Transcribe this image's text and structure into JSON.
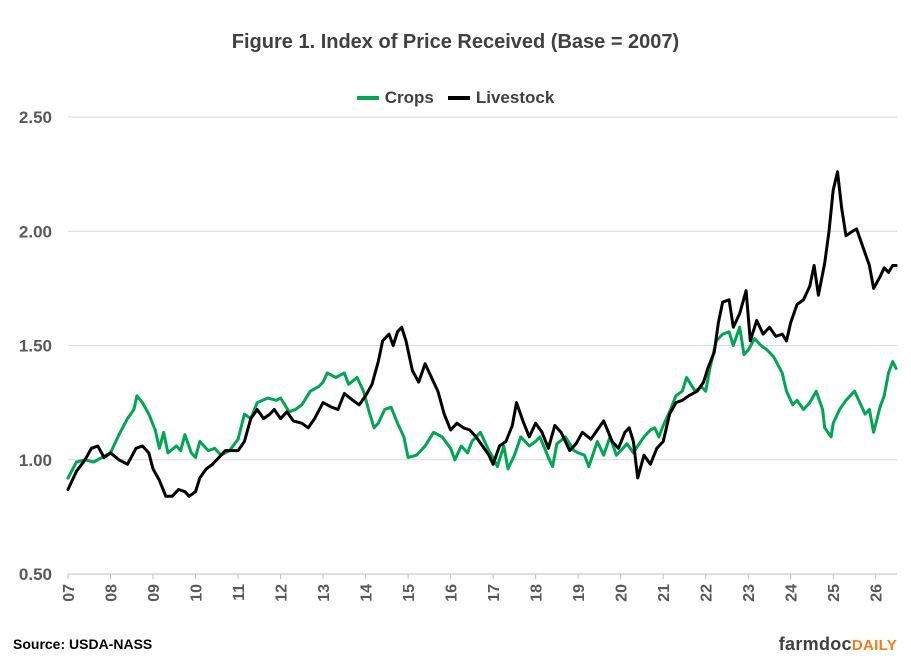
{
  "chart_data": {
    "type": "line",
    "title": "Figure 1. Index of Price Received (Base = 2007)",
    "ylim": [
      0.5,
      2.5
    ],
    "yticks": [
      "0.50",
      "1.00",
      "1.50",
      "2.00",
      "2.50"
    ],
    "xlim": [
      2007.0,
      2026.5
    ],
    "xticks": [
      "07",
      "08",
      "09",
      "10",
      "11",
      "12",
      "13",
      "14",
      "15",
      "16",
      "17",
      "18",
      "19",
      "20",
      "21",
      "22",
      "23",
      "24",
      "25",
      "26"
    ],
    "grid": "horizontal",
    "legend_position": "top-center",
    "series": [
      {
        "name": "Crops",
        "color": "#00a651",
        "points": [
          [
            2007.0,
            0.92
          ],
          [
            2007.2,
            0.99
          ],
          [
            2007.4,
            1.0
          ],
          [
            2007.6,
            0.99
          ],
          [
            2007.8,
            1.01
          ],
          [
            2008.0,
            1.03
          ],
          [
            2008.2,
            1.11
          ],
          [
            2008.4,
            1.18
          ],
          [
            2008.55,
            1.22
          ],
          [
            2008.62,
            1.28
          ],
          [
            2008.75,
            1.25
          ],
          [
            2008.9,
            1.2
          ],
          [
            2009.05,
            1.13
          ],
          [
            2009.15,
            1.05
          ],
          [
            2009.25,
            1.12
          ],
          [
            2009.35,
            1.03
          ],
          [
            2009.55,
            1.06
          ],
          [
            2009.65,
            1.04
          ],
          [
            2009.75,
            1.11
          ],
          [
            2009.9,
            1.03
          ],
          [
            2010.0,
            1.01
          ],
          [
            2010.1,
            1.08
          ],
          [
            2010.3,
            1.04
          ],
          [
            2010.45,
            1.05
          ],
          [
            2010.6,
            1.02
          ],
          [
            2010.8,
            1.04
          ],
          [
            2011.0,
            1.09
          ],
          [
            2011.15,
            1.2
          ],
          [
            2011.3,
            1.18
          ],
          [
            2011.45,
            1.25
          ],
          [
            2011.7,
            1.27
          ],
          [
            2011.9,
            1.26
          ],
          [
            2012.0,
            1.27
          ],
          [
            2012.2,
            1.21
          ],
          [
            2012.35,
            1.22
          ],
          [
            2012.5,
            1.24
          ],
          [
            2012.7,
            1.3
          ],
          [
            2012.9,
            1.32
          ],
          [
            2013.0,
            1.34
          ],
          [
            2013.1,
            1.38
          ],
          [
            2013.3,
            1.36
          ],
          [
            2013.5,
            1.38
          ],
          [
            2013.6,
            1.33
          ],
          [
            2013.8,
            1.36
          ],
          [
            2013.95,
            1.3
          ],
          [
            2014.1,
            1.2
          ],
          [
            2014.2,
            1.14
          ],
          [
            2014.3,
            1.16
          ],
          [
            2014.45,
            1.22
          ],
          [
            2014.6,
            1.23
          ],
          [
            2014.75,
            1.16
          ],
          [
            2014.9,
            1.1
          ],
          [
            2015.0,
            1.01
          ],
          [
            2015.2,
            1.02
          ],
          [
            2015.4,
            1.06
          ],
          [
            2015.6,
            1.12
          ],
          [
            2015.8,
            1.1
          ],
          [
            2016.0,
            1.05
          ],
          [
            2016.1,
            1.0
          ],
          [
            2016.25,
            1.06
          ],
          [
            2016.4,
            1.03
          ],
          [
            2016.5,
            1.08
          ],
          [
            2016.7,
            1.12
          ],
          [
            2016.9,
            1.04
          ],
          [
            2017.0,
            1.01
          ],
          [
            2017.1,
            0.97
          ],
          [
            2017.25,
            1.06
          ],
          [
            2017.35,
            0.96
          ],
          [
            2017.5,
            1.02
          ],
          [
            2017.65,
            1.1
          ],
          [
            2017.85,
            1.06
          ],
          [
            2018.0,
            1.08
          ],
          [
            2018.1,
            1.1
          ],
          [
            2018.3,
            1.01
          ],
          [
            2018.4,
            0.97
          ],
          [
            2018.5,
            1.07
          ],
          [
            2018.7,
            1.1
          ],
          [
            2018.9,
            1.04
          ],
          [
            2019.0,
            1.03
          ],
          [
            2019.15,
            1.02
          ],
          [
            2019.25,
            0.97
          ],
          [
            2019.45,
            1.08
          ],
          [
            2019.6,
            1.02
          ],
          [
            2019.75,
            1.1
          ],
          [
            2019.9,
            1.02
          ],
          [
            2020.0,
            1.04
          ],
          [
            2020.15,
            1.07
          ],
          [
            2020.3,
            1.03
          ],
          [
            2020.4,
            1.06
          ],
          [
            2020.55,
            1.1
          ],
          [
            2020.7,
            1.13
          ],
          [
            2020.8,
            1.14
          ],
          [
            2020.9,
            1.1
          ],
          [
            2021.0,
            1.15
          ],
          [
            2021.15,
            1.21
          ],
          [
            2021.3,
            1.28
          ],
          [
            2021.45,
            1.3
          ],
          [
            2021.55,
            1.36
          ],
          [
            2021.75,
            1.3
          ],
          [
            2021.9,
            1.32
          ],
          [
            2022.0,
            1.3
          ],
          [
            2022.1,
            1.4
          ],
          [
            2022.25,
            1.52
          ],
          [
            2022.4,
            1.55
          ],
          [
            2022.55,
            1.56
          ],
          [
            2022.65,
            1.5
          ],
          [
            2022.8,
            1.58
          ],
          [
            2022.9,
            1.46
          ],
          [
            2023.0,
            1.48
          ],
          [
            2023.15,
            1.53
          ],
          [
            2023.3,
            1.5
          ],
          [
            2023.45,
            1.48
          ],
          [
            2023.6,
            1.45
          ],
          [
            2023.8,
            1.38
          ],
          [
            2023.9,
            1.3
          ],
          [
            2024.05,
            1.24
          ],
          [
            2024.15,
            1.26
          ],
          [
            2024.3,
            1.22
          ],
          [
            2024.45,
            1.25
          ],
          [
            2024.6,
            1.3
          ],
          [
            2024.75,
            1.22
          ],
          [
            2024.8,
            1.14
          ],
          [
            2024.95,
            1.1
          ],
          [
            2025.0,
            1.16
          ],
          [
            2025.15,
            1.22
          ],
          [
            2025.3,
            1.26
          ],
          [
            2025.5,
            1.3
          ],
          [
            2025.65,
            1.24
          ],
          [
            2025.75,
            1.2
          ],
          [
            2025.85,
            1.22
          ],
          [
            2025.95,
            1.12
          ],
          [
            2026.1,
            1.23
          ],
          [
            2026.2,
            1.28
          ],
          [
            2026.3,
            1.38
          ],
          [
            2026.4,
            1.43
          ],
          [
            2026.48,
            1.4
          ]
        ]
      },
      {
        "name": "Livestock",
        "color": "#000000",
        "points": [
          [
            2007.0,
            0.87
          ],
          [
            2007.2,
            0.95
          ],
          [
            2007.4,
            1.0
          ],
          [
            2007.55,
            1.05
          ],
          [
            2007.7,
            1.06
          ],
          [
            2007.85,
            1.01
          ],
          [
            2008.0,
            1.03
          ],
          [
            2008.2,
            1.0
          ],
          [
            2008.4,
            0.98
          ],
          [
            2008.6,
            1.05
          ],
          [
            2008.75,
            1.06
          ],
          [
            2008.9,
            1.03
          ],
          [
            2009.0,
            0.96
          ],
          [
            2009.15,
            0.91
          ],
          [
            2009.3,
            0.84
          ],
          [
            2009.45,
            0.84
          ],
          [
            2009.6,
            0.87
          ],
          [
            2009.75,
            0.86
          ],
          [
            2009.85,
            0.84
          ],
          [
            2010.0,
            0.86
          ],
          [
            2010.1,
            0.92
          ],
          [
            2010.25,
            0.96
          ],
          [
            2010.4,
            0.98
          ],
          [
            2010.55,
            1.01
          ],
          [
            2010.7,
            1.04
          ],
          [
            2010.85,
            1.04
          ],
          [
            2011.0,
            1.04
          ],
          [
            2011.15,
            1.08
          ],
          [
            2011.3,
            1.18
          ],
          [
            2011.45,
            1.22
          ],
          [
            2011.6,
            1.18
          ],
          [
            2011.75,
            1.2
          ],
          [
            2011.85,
            1.22
          ],
          [
            2012.0,
            1.18
          ],
          [
            2012.15,
            1.21
          ],
          [
            2012.3,
            1.17
          ],
          [
            2012.5,
            1.16
          ],
          [
            2012.65,
            1.14
          ],
          [
            2012.8,
            1.18
          ],
          [
            2013.0,
            1.25
          ],
          [
            2013.2,
            1.23
          ],
          [
            2013.35,
            1.22
          ],
          [
            2013.5,
            1.29
          ],
          [
            2013.7,
            1.26
          ],
          [
            2013.85,
            1.24
          ],
          [
            2014.0,
            1.28
          ],
          [
            2014.15,
            1.33
          ],
          [
            2014.3,
            1.43
          ],
          [
            2014.4,
            1.52
          ],
          [
            2014.55,
            1.55
          ],
          [
            2014.65,
            1.5
          ],
          [
            2014.75,
            1.56
          ],
          [
            2014.85,
            1.58
          ],
          [
            2014.95,
            1.52
          ],
          [
            2015.1,
            1.39
          ],
          [
            2015.25,
            1.34
          ],
          [
            2015.4,
            1.42
          ],
          [
            2015.55,
            1.36
          ],
          [
            2015.7,
            1.3
          ],
          [
            2015.85,
            1.2
          ],
          [
            2016.0,
            1.13
          ],
          [
            2016.15,
            1.16
          ],
          [
            2016.3,
            1.14
          ],
          [
            2016.45,
            1.13
          ],
          [
            2016.6,
            1.1
          ],
          [
            2016.75,
            1.06
          ],
          [
            2016.9,
            1.02
          ],
          [
            2017.0,
            0.98
          ],
          [
            2017.15,
            1.06
          ],
          [
            2017.3,
            1.08
          ],
          [
            2017.45,
            1.15
          ],
          [
            2017.55,
            1.25
          ],
          [
            2017.7,
            1.17
          ],
          [
            2017.85,
            1.1
          ],
          [
            2018.0,
            1.16
          ],
          [
            2018.15,
            1.12
          ],
          [
            2018.3,
            1.05
          ],
          [
            2018.45,
            1.15
          ],
          [
            2018.6,
            1.12
          ],
          [
            2018.8,
            1.04
          ],
          [
            2018.95,
            1.07
          ],
          [
            2019.1,
            1.12
          ],
          [
            2019.3,
            1.09
          ],
          [
            2019.45,
            1.13
          ],
          [
            2019.6,
            1.17
          ],
          [
            2019.8,
            1.08
          ],
          [
            2019.95,
            1.05
          ],
          [
            2020.1,
            1.12
          ],
          [
            2020.2,
            1.14
          ],
          [
            2020.3,
            1.08
          ],
          [
            2020.4,
            0.92
          ],
          [
            2020.55,
            1.02
          ],
          [
            2020.7,
            0.98
          ],
          [
            2020.85,
            1.05
          ],
          [
            2021.0,
            1.08
          ],
          [
            2021.15,
            1.2
          ],
          [
            2021.3,
            1.25
          ],
          [
            2021.45,
            1.26
          ],
          [
            2021.6,
            1.28
          ],
          [
            2021.8,
            1.3
          ],
          [
            2021.95,
            1.34
          ],
          [
            2022.05,
            1.4
          ],
          [
            2022.2,
            1.47
          ],
          [
            2022.3,
            1.6
          ],
          [
            2022.4,
            1.69
          ],
          [
            2022.55,
            1.7
          ],
          [
            2022.65,
            1.58
          ],
          [
            2022.8,
            1.64
          ],
          [
            2022.95,
            1.74
          ],
          [
            2023.05,
            1.52
          ],
          [
            2023.2,
            1.61
          ],
          [
            2023.35,
            1.55
          ],
          [
            2023.5,
            1.58
          ],
          [
            2023.65,
            1.54
          ],
          [
            2023.8,
            1.55
          ],
          [
            2023.9,
            1.52
          ],
          [
            2024.0,
            1.6
          ],
          [
            2024.15,
            1.68
          ],
          [
            2024.3,
            1.7
          ],
          [
            2024.45,
            1.76
          ],
          [
            2024.55,
            1.85
          ],
          [
            2024.65,
            1.72
          ],
          [
            2024.8,
            1.86
          ],
          [
            2024.9,
            2.0
          ],
          [
            2025.0,
            2.18
          ],
          [
            2025.1,
            2.26
          ],
          [
            2025.2,
            2.1
          ],
          [
            2025.3,
            1.98
          ],
          [
            2025.45,
            2.0
          ],
          [
            2025.55,
            2.01
          ],
          [
            2025.7,
            1.93
          ],
          [
            2025.85,
            1.85
          ],
          [
            2025.95,
            1.75
          ],
          [
            2026.1,
            1.8
          ],
          [
            2026.2,
            1.84
          ],
          [
            2026.3,
            1.82
          ],
          [
            2026.4,
            1.85
          ],
          [
            2026.48,
            1.85
          ]
        ]
      }
    ]
  },
  "footer": {
    "source": "Source:  USDA-NASS",
    "logo_farmdoc": "farmdoc",
    "logo_daily": "DAILY"
  }
}
